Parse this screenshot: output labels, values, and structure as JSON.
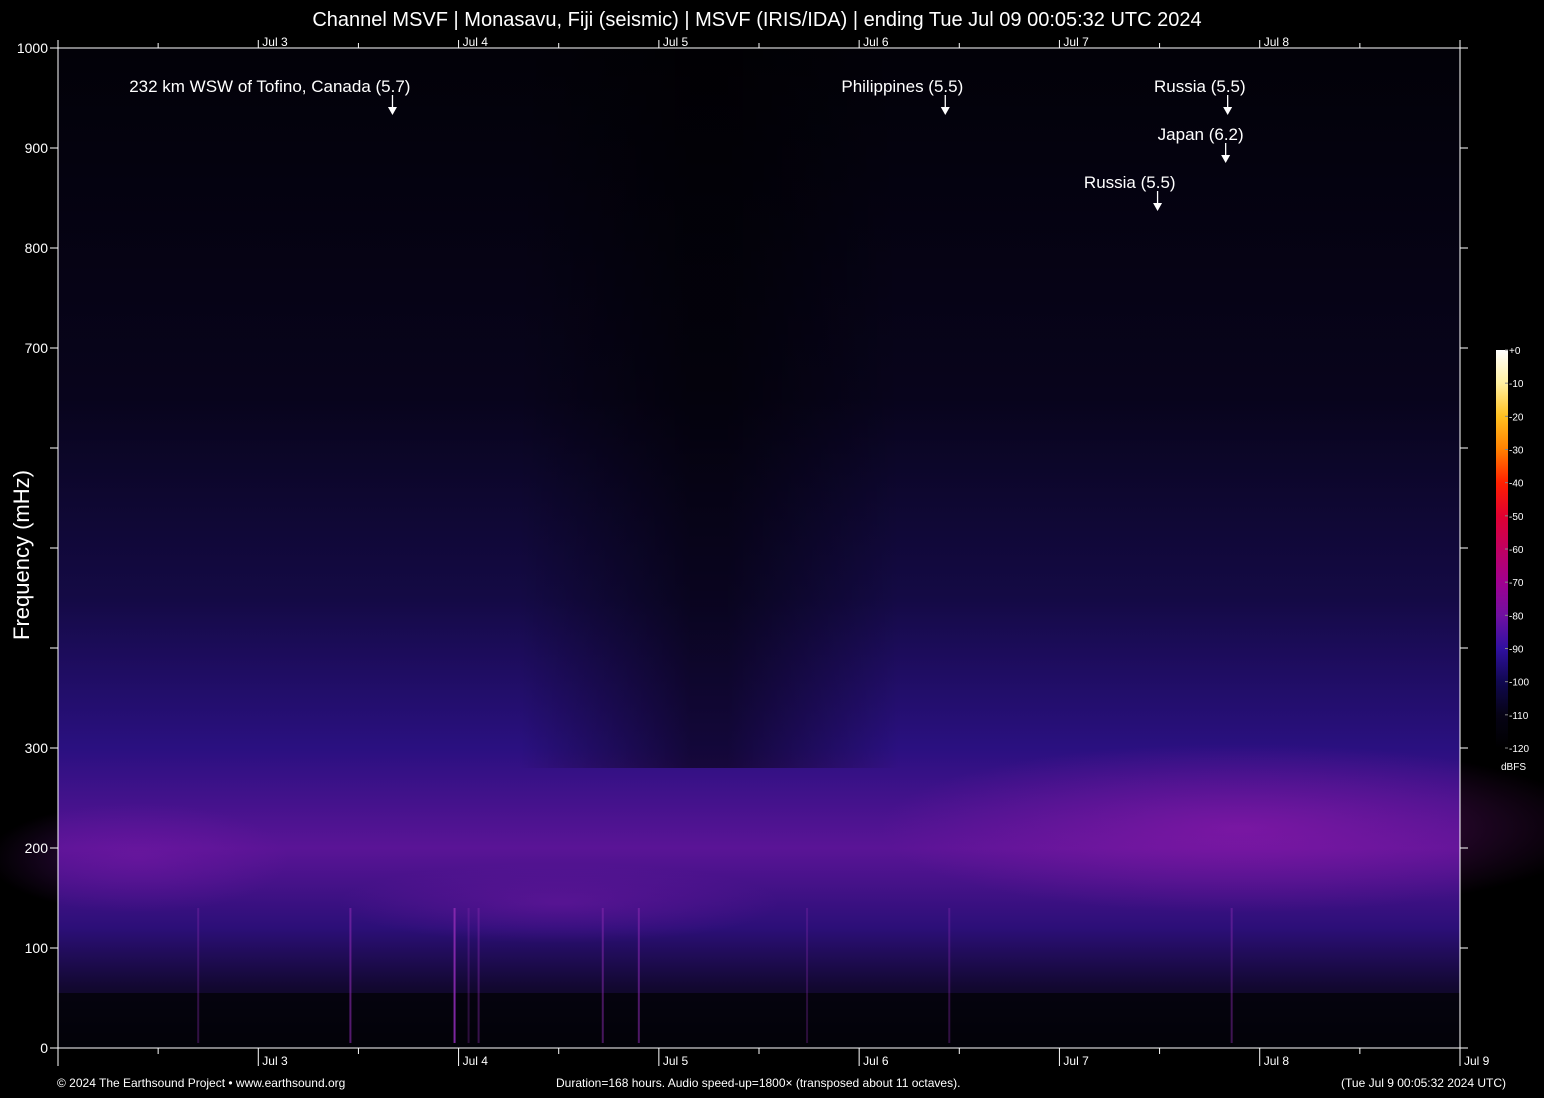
{
  "title": "Channel MSVF | Monasavu, Fiji (seismic) | MSVF (IRIS/IDA) | ending Tue Jul 09 00:05:32 UTC 2024",
  "footer": {
    "left": "© 2024 The Earthsound Project • www.earthsound.org",
    "center": "Duration=168 hours. Audio speed-up=1800× (transposed about 11 octaves).",
    "right": "(Tue Jul  9 00:05:32 2024 UTC)"
  },
  "colors": {
    "background": "#000000",
    "axis": "#ffffff",
    "spectrogram_low": "#05030f",
    "spectrogram_mid": "#2a0f7a",
    "spectrogram_high": "#8a1aa8"
  },
  "chart_data": {
    "type": "heatmap",
    "title": "Channel MSVF | Monasavu, Fiji (seismic) | MSVF (IRIS/IDA) | ending Tue Jul 09 00:05:32 UTC 2024",
    "xlabel": "",
    "ylabel": "Frequency (mHz)",
    "ylim": [
      0,
      1000
    ],
    "y_ticks": [
      0,
      100,
      200,
      300,
      400,
      500,
      600,
      700,
      800,
      900,
      1000
    ],
    "y_tick_labels": [
      "0",
      "100",
      "200",
      "300",
      "",
      "",
      "",
      "700",
      "800",
      "900",
      "1000"
    ],
    "x_range_days": [
      "Jul 2",
      "Jul 9"
    ],
    "x_tick_labels_bottom": [
      "Jul 3",
      "Jul 4",
      "Jul 5",
      "Jul 6",
      "Jul 7",
      "Jul 8",
      "Jul 9"
    ],
    "x_tick_labels_top": [
      "Jul 3",
      "Jul 4",
      "Jul 5",
      "Jul 6",
      "Jul 7",
      "Jul 8"
    ],
    "colorbar": {
      "unit": "dBFS",
      "ticks": [
        "+0",
        "-10",
        "-20",
        "-30",
        "-40",
        "-50",
        "-60",
        "-70",
        "-80",
        "-90",
        "-100",
        "-110",
        "-120"
      ],
      "range": [
        -120,
        0
      ],
      "gradient": [
        "#ffffff",
        "#fff0a0",
        "#ffc020",
        "#ff8000",
        "#ff2000",
        "#e00030",
        "#c00060",
        "#a00090",
        "#7010a0",
        "#3010a0",
        "#100850",
        "#060315",
        "#000000"
      ]
    },
    "annotations": [
      {
        "label": "232 km WSW of Tofino, Canada (5.7)",
        "day": 3.67
      },
      {
        "label": "Philippines (5.5)",
        "day": 6.43
      },
      {
        "label": "Russia (5.5)",
        "day": 7.84
      },
      {
        "label": "Japan (6.2)",
        "day": 7.83
      },
      {
        "label": "Russia (5.5)",
        "day": 7.49
      }
    ],
    "grid": false
  }
}
